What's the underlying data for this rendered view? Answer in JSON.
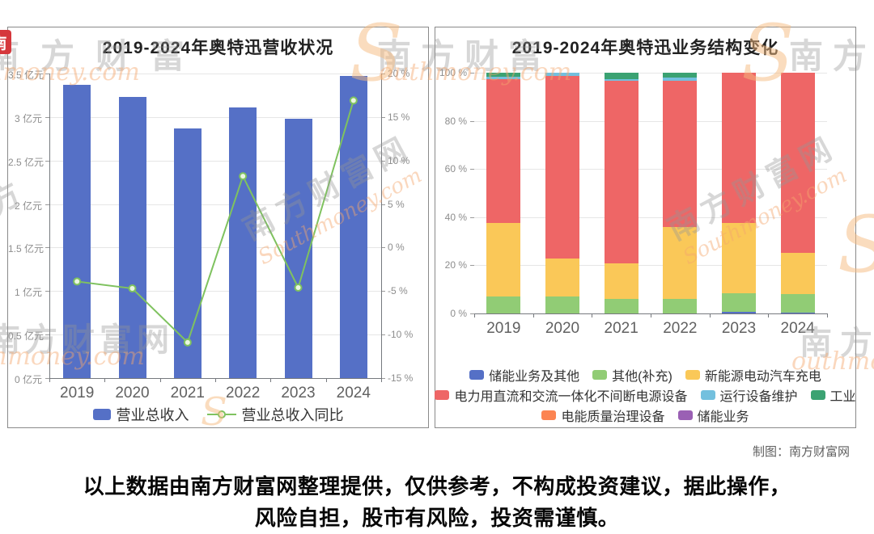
{
  "watermark": {
    "cn": "南方财富网",
    "cn4": "南方财富",
    "cn3": "南方财",
    "cn2": "南方",
    "en": "Southmoney.com",
    "en_partial": "thmoney.com",
    "en_partial2": "outhmoney.com",
    "logo": "S",
    "badge": "南"
  },
  "footer": {
    "credit": "制图：南方财富网",
    "disclaimer": "以上数据由南方财富网整理提供，仅供参考，不构成投资建议，据此操作，风险自担，股市有风险，投资需谨慎。"
  },
  "chart_data": [
    {
      "type": "bar",
      "subtype": "bar-with-line",
      "title": "2019-2024年奥特迅营收状况",
      "categories": [
        "2019",
        "2020",
        "2021",
        "2022",
        "2023",
        "2024"
      ],
      "series": [
        {
          "name": "营业总收入",
          "kind": "bar",
          "unit": "亿元",
          "color": "#5570c6",
          "values": [
            3.37,
            3.23,
            2.87,
            3.11,
            2.98,
            3.47
          ]
        },
        {
          "name": "营业总收入同比",
          "kind": "line",
          "unit": "%",
          "color": "#7fc25f",
          "values": [
            -3.9,
            -4.7,
            -10.9,
            8.2,
            -4.6,
            16.9
          ]
        }
      ],
      "y_axis_left": {
        "min": 0,
        "max": 3.5,
        "step": 0.5,
        "suffix": " 亿元"
      },
      "y_axis_right": {
        "min": -15,
        "max": 20,
        "step": 5,
        "suffix": " %"
      },
      "grid": true,
      "legend_position": "bottom"
    },
    {
      "type": "bar",
      "subtype": "stacked-percent",
      "title": "2019-2024年奥特迅业务结构变化",
      "categories": [
        "2019",
        "2020",
        "2021",
        "2022",
        "2023",
        "2024"
      ],
      "y_axis": {
        "min": 0,
        "max": 100,
        "step": 20,
        "suffix": " %"
      },
      "series": [
        {
          "name": "储能业务及其他",
          "color": "#5570c6",
          "values": [
            0,
            0,
            0,
            0,
            0.8,
            0.5
          ]
        },
        {
          "name": "其他(补充)",
          "color": "#91cc75",
          "values": [
            7.1,
            7.0,
            6.2,
            6.0,
            7.6,
            7.6
          ]
        },
        {
          "name": "新能源电动汽车充电",
          "color": "#fac858",
          "values": [
            30.4,
            15.7,
            14.5,
            29.9,
            29.1,
            17.1
          ]
        },
        {
          "name": "电力用直流和交流一体化不间断电源设备",
          "color": "#ee6666",
          "values": [
            59.9,
            75.9,
            76.1,
            60.8,
            62.5,
            74.8
          ]
        },
        {
          "name": "运行设备维护",
          "color": "#73c0de",
          "values": [
            0.8,
            1.4,
            0.4,
            1.3,
            0,
            0
          ]
        },
        {
          "name": "工业",
          "color": "#3ba272",
          "values": [
            1.8,
            0,
            2.8,
            2.0,
            0,
            0
          ]
        },
        {
          "name": "电能质量治理设备",
          "color": "#fc8452",
          "values": [
            0,
            0,
            0,
            0,
            0,
            0
          ]
        },
        {
          "name": "储能业务",
          "color": "#9a60b4",
          "values": [
            0,
            0,
            0,
            0,
            0,
            0
          ]
        }
      ],
      "legend_rows": [
        [
          0,
          1,
          2
        ],
        [
          3,
          4,
          5
        ],
        [
          6,
          7
        ]
      ],
      "grid": true,
      "legend_position": "bottom"
    }
  ]
}
